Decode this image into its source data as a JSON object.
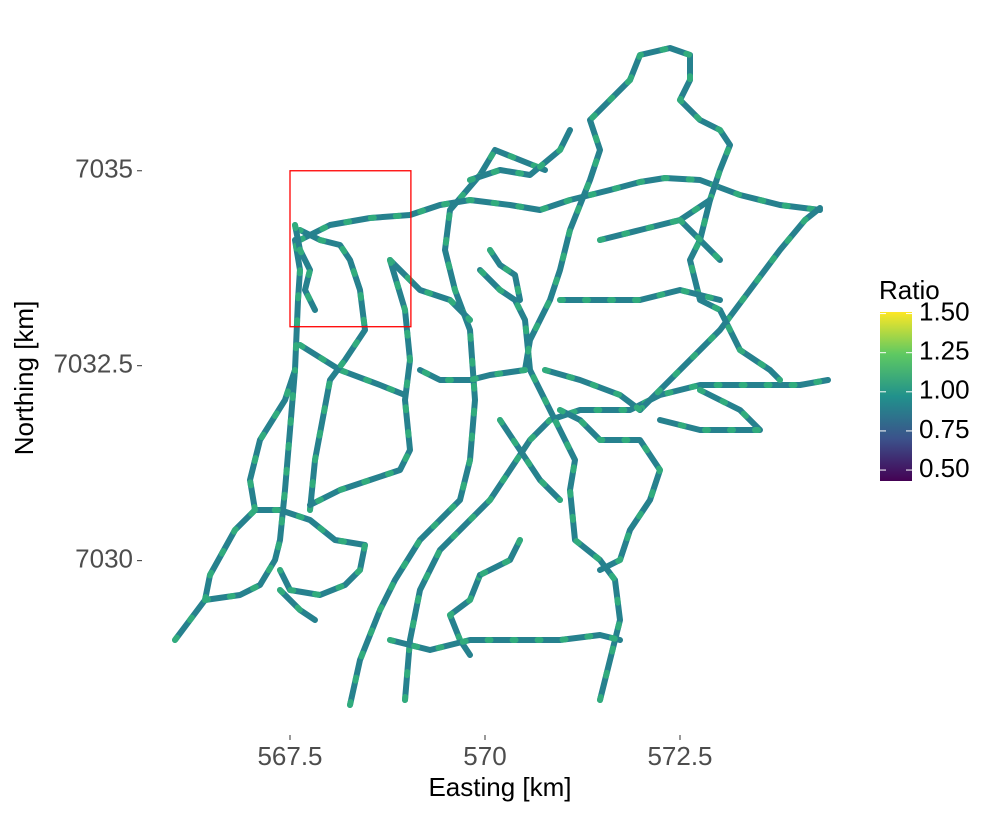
{
  "chart_data": {
    "type": "map",
    "x_label": "Easting [km]",
    "y_label": "Northing [km]",
    "xlim": [
      566,
      574.5
    ],
    "ylim": [
      7028.2,
      7036.6
    ],
    "xticks": [
      567.5,
      570,
      572.5
    ],
    "yticks": [
      7030,
      7032.5,
      7035
    ],
    "road_color": "#26818e",
    "road_highlight_color": "#35b779",
    "highlight": {
      "xlim": [
        567.5,
        569.05
      ],
      "ylim": [
        7033,
        7035
      ],
      "color": "#ff0000"
    },
    "colorbar": {
      "title": "Ratio",
      "clim": [
        0.43,
        1.51
      ],
      "colors": [
        "#440154",
        "#3b528b",
        "#21918c",
        "#5ec962",
        "#fde725"
      ],
      "ticks": [
        {
          "value": 0.5,
          "label": "0.50"
        },
        {
          "value": 0.75,
          "label": "0.75"
        },
        {
          "value": 1,
          "label": "1.00"
        },
        {
          "value": 1.25,
          "label": "1.25"
        },
        {
          "value": 1.5,
          "label": "1.50"
        }
      ]
    }
  }
}
